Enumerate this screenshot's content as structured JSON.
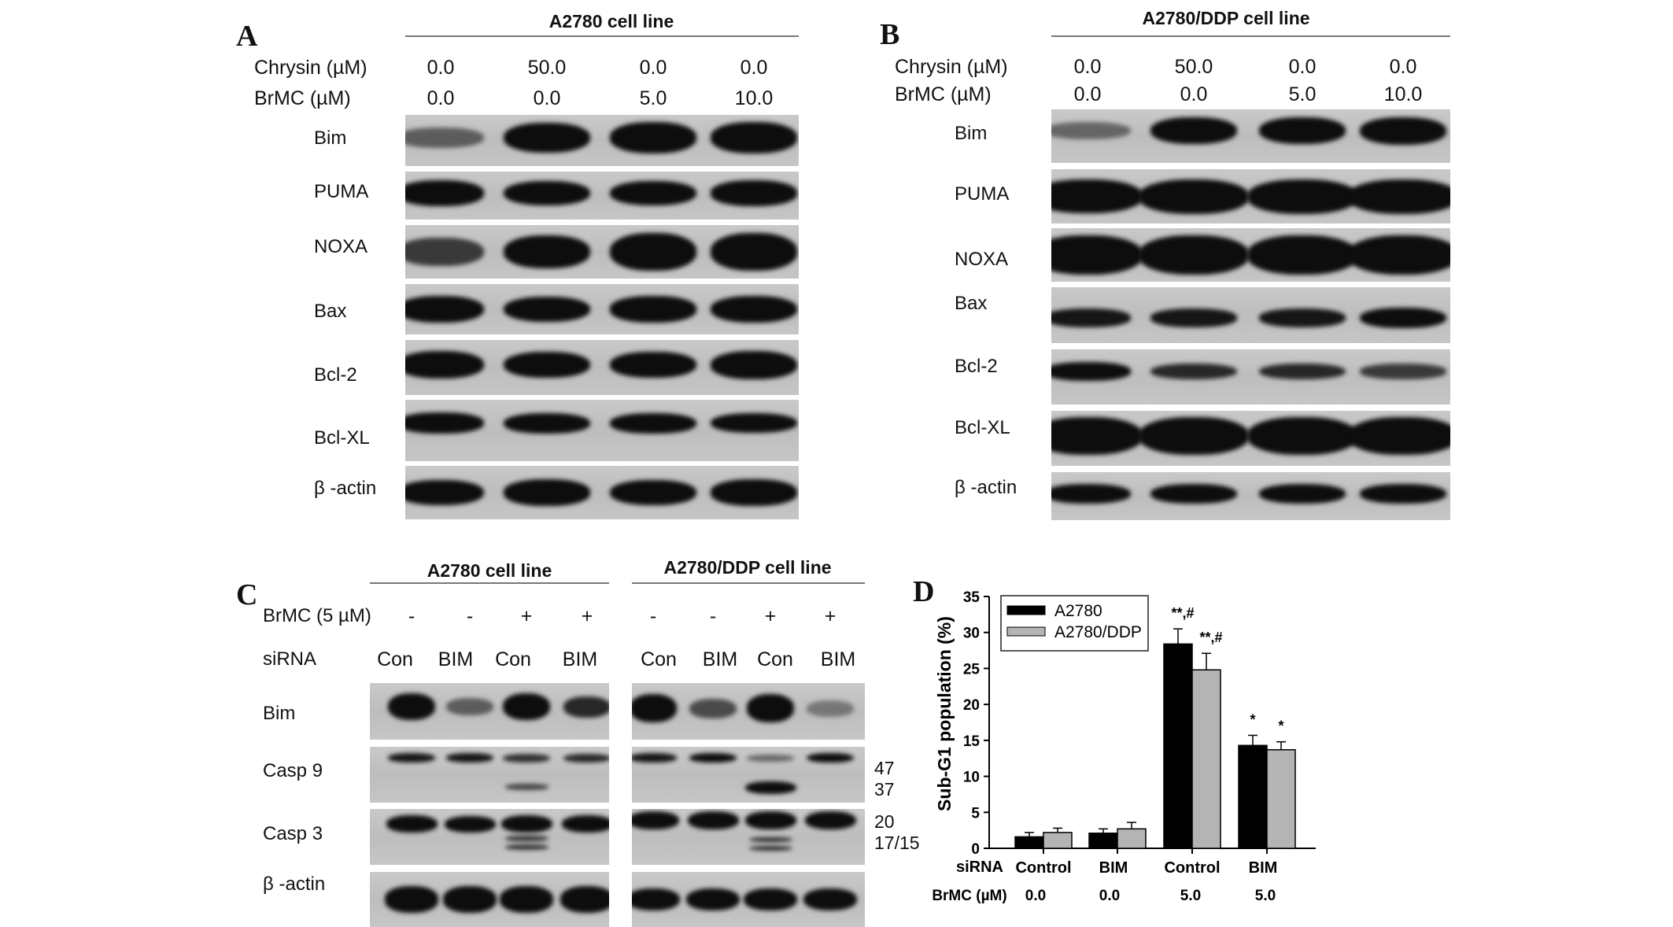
{
  "panel_a": {
    "label": "A",
    "title": "A2780 cell line",
    "chrysin_label": "Chrysin (µM)",
    "brmc_label": "BrMC  (µM)",
    "chrysin_values": [
      "0.0",
      "50.0",
      "0.0",
      "0.0"
    ],
    "brmc_values": [
      "0.0",
      "0.0",
      "5.0",
      "10.0"
    ],
    "proteins": [
      "Bim",
      "PUMA",
      "NOXA",
      "Bax",
      "Bcl-2",
      "Bcl-XL",
      "β -actin"
    ]
  },
  "panel_b": {
    "label": "B",
    "title": "A2780/DDP cell line",
    "chrysin_label": "Chrysin (µM)",
    "brmc_label": "BrMC  (µM)",
    "chrysin_values": [
      "0.0",
      "50.0",
      "0.0",
      "0.0"
    ],
    "brmc_values": [
      "0.0",
      "0.0",
      "5.0",
      "10.0"
    ],
    "proteins": [
      "Bim",
      "PUMA",
      "NOXA",
      "Bax",
      "Bcl-2",
      "Bcl-XL",
      "β -actin"
    ]
  },
  "panel_c": {
    "label": "C",
    "title_left": "A2780 cell line",
    "title_right": "A2780/DDP cell line",
    "brmc_label": "BrMC (5 µM)",
    "sirna_label": "siRNA",
    "brmc_signs": [
      "-",
      "-",
      "+",
      "+",
      "-",
      "-",
      "+",
      "+"
    ],
    "sirna_values": [
      "Con",
      "BIM",
      "Con",
      "BIM",
      "Con",
      "BIM",
      "Con",
      "BIM"
    ],
    "proteins": [
      "Bim",
      "Casp 9",
      "Casp 3",
      "β -actin"
    ],
    "mw_markers": [
      "47",
      "37",
      "20",
      "17/15"
    ]
  },
  "panel_d": {
    "label": "D",
    "sirna_label": "siRNA",
    "brmc_label": "BrMC (µM)",
    "brmc_values": [
      "0.0",
      "0.0",
      "5.0",
      "5.0"
    ]
  },
  "chart_data": {
    "type": "bar",
    "title": "",
    "xlabel": "",
    "ylabel": "Sub-G1 population (%)",
    "ylim": [
      0,
      35
    ],
    "yticks": [
      "0",
      "5",
      "10",
      "15",
      "20",
      "25",
      "30",
      "35"
    ],
    "categories": [
      "Control",
      "BIM",
      "Control",
      "BIM"
    ],
    "legend_position": "top-left",
    "series": [
      {
        "name": "A2780",
        "color": "#000000",
        "values": [
          1.6,
          2.1,
          28.4,
          14.3
        ],
        "errors": [
          0.6,
          0.6,
          2.1,
          1.4
        ],
        "annotations": [
          "",
          "",
          "**,#",
          "*"
        ]
      },
      {
        "name": "A2780/DDP",
        "color": "#b4b4b4",
        "values": [
          2.2,
          2.7,
          24.8,
          13.7
        ],
        "errors": [
          0.6,
          0.9,
          2.3,
          1.1
        ],
        "annotations": [
          "",
          "",
          "**,#",
          "*"
        ]
      }
    ]
  }
}
